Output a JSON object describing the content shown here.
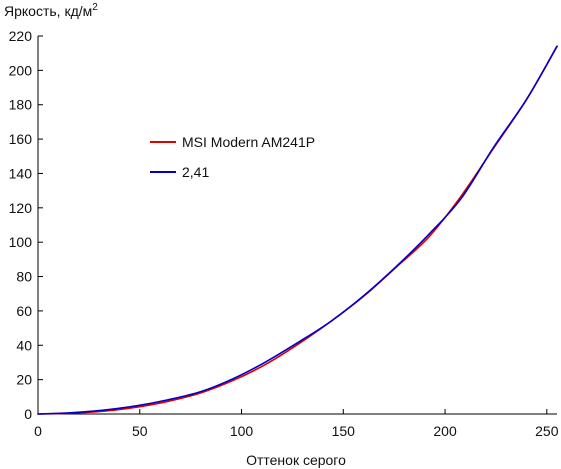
{
  "chart_data": {
    "type": "line",
    "title": "",
    "ylabel": "Яркость, кд/м",
    "ylabel_superscript": "2",
    "xlabel": "Оттенок серого",
    "xlim": [
      0,
      255
    ],
    "ylim": [
      0,
      220
    ],
    "xticks": [
      0,
      50,
      100,
      150,
      200,
      250
    ],
    "yticks": [
      0,
      20,
      40,
      60,
      80,
      100,
      120,
      140,
      160,
      180,
      200,
      220
    ],
    "grid": false,
    "legend_position": "upper-left inside plot",
    "series": [
      {
        "name": "MSI Modern AM241P",
        "color": "#dd0000",
        "x": [
          0,
          16,
          32,
          48,
          64,
          80,
          96,
          112,
          128,
          144,
          160,
          176,
          192,
          208,
          224,
          240,
          255
        ],
        "y": [
          0,
          0.5,
          1.6,
          3.9,
          7.4,
          12.3,
          19.6,
          29.0,
          40.8,
          54.0,
          68.5,
          85.5,
          103.0,
          127.0,
          155.0,
          183.0,
          214.0
        ]
      },
      {
        "name": "2,41",
        "color": "#0000cc",
        "x": [
          0,
          16,
          32,
          48,
          64,
          80,
          96,
          112,
          128,
          144,
          160,
          176,
          192,
          208,
          224,
          240,
          255
        ],
        "y": [
          0,
          0.7,
          2.2,
          4.7,
          8.3,
          13.0,
          20.6,
          30.4,
          41.8,
          54.0,
          68.8,
          85.8,
          104.5,
          125.6,
          155.5,
          183.0,
          214.0
        ]
      }
    ]
  }
}
